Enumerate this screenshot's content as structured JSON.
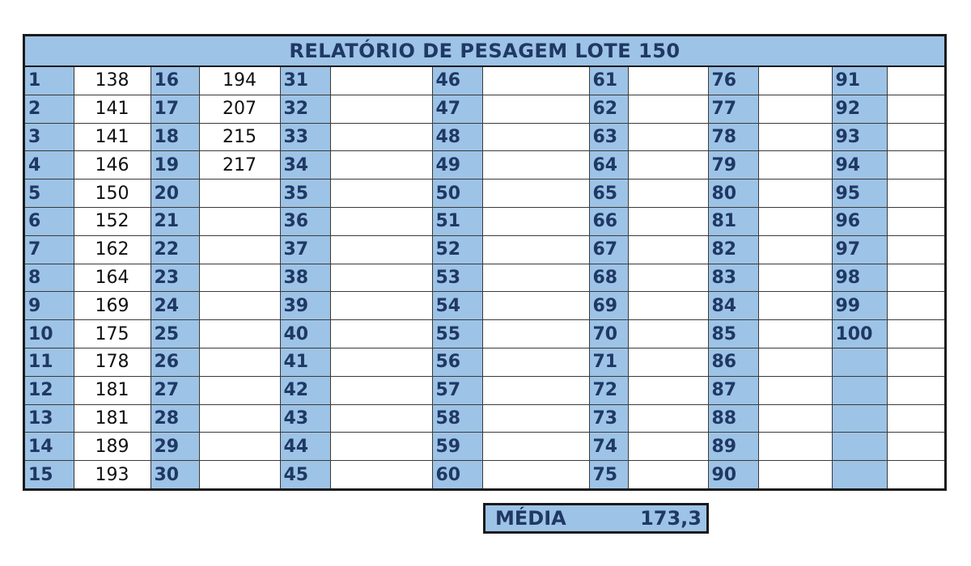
{
  "report": {
    "title": "RELATÓRIO DE PESAGEM LOTE 150",
    "colors": {
      "header_fill": "#9dc3e6",
      "header_text": "#1f3864",
      "border": "#1a1a1a"
    },
    "entries": [
      {
        "n": "1",
        "w": "138"
      },
      {
        "n": "2",
        "w": "141"
      },
      {
        "n": "3",
        "w": "141"
      },
      {
        "n": "4",
        "w": "146"
      },
      {
        "n": "5",
        "w": "150"
      },
      {
        "n": "6",
        "w": "152"
      },
      {
        "n": "7",
        "w": "162"
      },
      {
        "n": "8",
        "w": "164"
      },
      {
        "n": "9",
        "w": "169"
      },
      {
        "n": "10",
        "w": "175"
      },
      {
        "n": "11",
        "w": "178"
      },
      {
        "n": "12",
        "w": "181"
      },
      {
        "n": "13",
        "w": "181"
      },
      {
        "n": "14",
        "w": "189"
      },
      {
        "n": "15",
        "w": "193"
      },
      {
        "n": "16",
        "w": "194"
      },
      {
        "n": "17",
        "w": "207"
      },
      {
        "n": "18",
        "w": "215"
      },
      {
        "n": "19",
        "w": "217"
      },
      {
        "n": "20",
        "w": ""
      },
      {
        "n": "21",
        "w": ""
      },
      {
        "n": "22",
        "w": ""
      },
      {
        "n": "23",
        "w": ""
      },
      {
        "n": "24",
        "w": ""
      },
      {
        "n": "25",
        "w": ""
      },
      {
        "n": "26",
        "w": ""
      },
      {
        "n": "27",
        "w": ""
      },
      {
        "n": "28",
        "w": ""
      },
      {
        "n": "29",
        "w": ""
      },
      {
        "n": "30",
        "w": ""
      },
      {
        "n": "31",
        "w": ""
      },
      {
        "n": "32",
        "w": ""
      },
      {
        "n": "33",
        "w": ""
      },
      {
        "n": "34",
        "w": ""
      },
      {
        "n": "35",
        "w": ""
      },
      {
        "n": "36",
        "w": ""
      },
      {
        "n": "37",
        "w": ""
      },
      {
        "n": "38",
        "w": ""
      },
      {
        "n": "39",
        "w": ""
      },
      {
        "n": "40",
        "w": ""
      },
      {
        "n": "41",
        "w": ""
      },
      {
        "n": "42",
        "w": ""
      },
      {
        "n": "43",
        "w": ""
      },
      {
        "n": "44",
        "w": ""
      },
      {
        "n": "45",
        "w": ""
      },
      {
        "n": "46",
        "w": ""
      },
      {
        "n": "47",
        "w": ""
      },
      {
        "n": "48",
        "w": ""
      },
      {
        "n": "49",
        "w": ""
      },
      {
        "n": "50",
        "w": ""
      },
      {
        "n": "51",
        "w": ""
      },
      {
        "n": "52",
        "w": ""
      },
      {
        "n": "53",
        "w": ""
      },
      {
        "n": "54",
        "w": ""
      },
      {
        "n": "55",
        "w": ""
      },
      {
        "n": "56",
        "w": ""
      },
      {
        "n": "57",
        "w": ""
      },
      {
        "n": "58",
        "w": ""
      },
      {
        "n": "59",
        "w": ""
      },
      {
        "n": "60",
        "w": ""
      },
      {
        "n": "61",
        "w": ""
      },
      {
        "n": "62",
        "w": ""
      },
      {
        "n": "63",
        "w": ""
      },
      {
        "n": "64",
        "w": ""
      },
      {
        "n": "65",
        "w": ""
      },
      {
        "n": "66",
        "w": ""
      },
      {
        "n": "67",
        "w": ""
      },
      {
        "n": "68",
        "w": ""
      },
      {
        "n": "69",
        "w": ""
      },
      {
        "n": "70",
        "w": ""
      },
      {
        "n": "71",
        "w": ""
      },
      {
        "n": "72",
        "w": ""
      },
      {
        "n": "73",
        "w": ""
      },
      {
        "n": "74",
        "w": ""
      },
      {
        "n": "75",
        "w": ""
      },
      {
        "n": "76",
        "w": ""
      },
      {
        "n": "77",
        "w": ""
      },
      {
        "n": "78",
        "w": ""
      },
      {
        "n": "79",
        "w": ""
      },
      {
        "n": "80",
        "w": ""
      },
      {
        "n": "81",
        "w": ""
      },
      {
        "n": "82",
        "w": ""
      },
      {
        "n": "83",
        "w": ""
      },
      {
        "n": "84",
        "w": ""
      },
      {
        "n": "85",
        "w": ""
      },
      {
        "n": "86",
        "w": ""
      },
      {
        "n": "87",
        "w": ""
      },
      {
        "n": "88",
        "w": ""
      },
      {
        "n": "89",
        "w": ""
      },
      {
        "n": "90",
        "w": ""
      },
      {
        "n": "91",
        "w": ""
      },
      {
        "n": "92",
        "w": ""
      },
      {
        "n": "93",
        "w": ""
      },
      {
        "n": "94",
        "w": ""
      },
      {
        "n": "95",
        "w": ""
      },
      {
        "n": "96",
        "w": ""
      },
      {
        "n": "97",
        "w": ""
      },
      {
        "n": "98",
        "w": ""
      },
      {
        "n": "99",
        "w": ""
      },
      {
        "n": "100",
        "w": ""
      }
    ],
    "summary": {
      "label": "MÉDIA",
      "value": "173,3"
    }
  }
}
